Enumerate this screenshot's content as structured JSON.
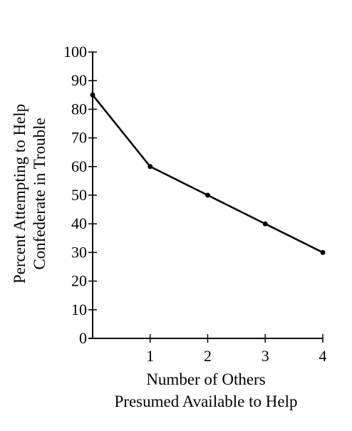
{
  "chart_data": {
    "type": "line",
    "title": "",
    "xlabel": [
      "Number of Others",
      "Presumed Available to Help"
    ],
    "ylabel": [
      "Percent Attempting to Help",
      "Confederate in Trouble"
    ],
    "xlim": [
      0,
      4
    ],
    "ylim": [
      0,
      100
    ],
    "x_ticks": [
      "1",
      "2",
      "3",
      "4"
    ],
    "y_ticks": [
      "0",
      "10",
      "20",
      "30",
      "40",
      "50",
      "60",
      "70",
      "80",
      "90",
      "100"
    ],
    "grid": false,
    "legend": "none",
    "series": [
      {
        "x": [
          0,
          1,
          2,
          3,
          4
        ],
        "y": [
          85,
          60,
          50,
          40,
          30
        ]
      }
    ],
    "colors": {
      "line": "#000000",
      "axis": "#000000"
    }
  }
}
